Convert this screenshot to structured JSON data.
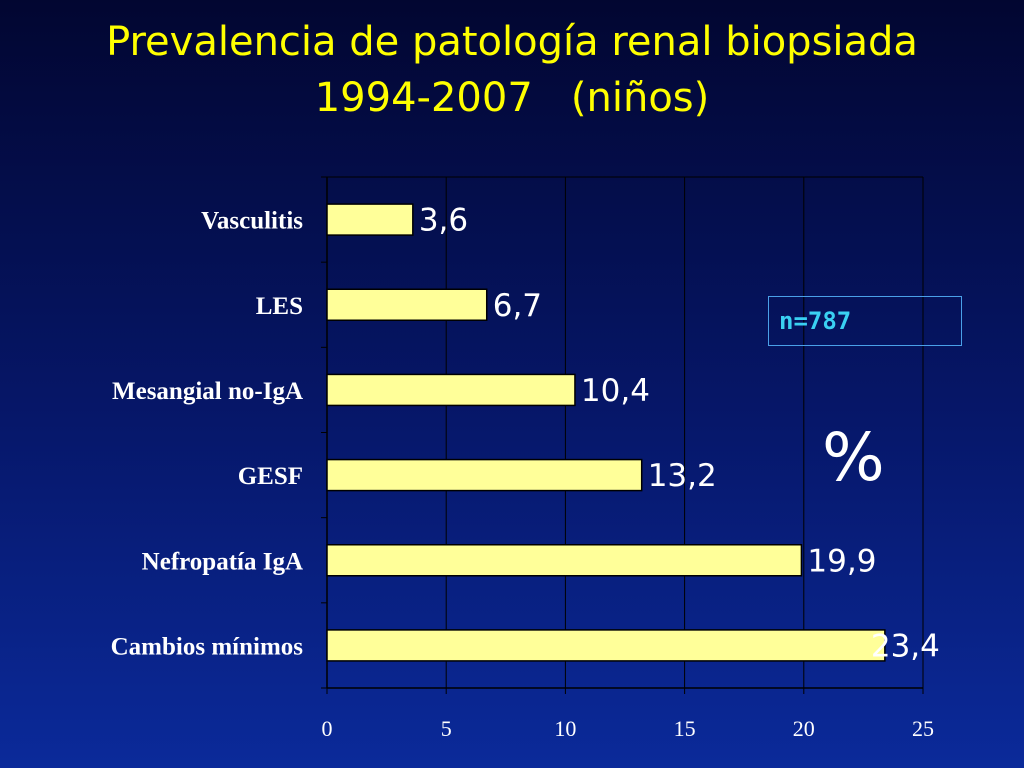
{
  "title": {
    "line1": "Prevalencia de patología renal biopsiada",
    "line2": "1994-2007   (niños)"
  },
  "annotations": {
    "n_label": "n=787",
    "unit_symbol": "%"
  },
  "colors": {
    "bar_fill": "#ffff99",
    "bar_stroke": "#000000",
    "title": "#ffff00",
    "n_label": "#3ad0f2"
  },
  "chart_data": {
    "type": "bar",
    "orientation": "horizontal",
    "categories": [
      "Vasculitis",
      "LES",
      "Mesangial no-IgA",
      "GESF",
      "Nefropatía IgA",
      "Cambios mínimos"
    ],
    "values": [
      3.6,
      6.7,
      10.4,
      13.2,
      19.9,
      23.4
    ],
    "data_labels": [
      "3,6",
      "6,7",
      "10,4",
      "13,2",
      "19,9",
      "23,4"
    ],
    "xlim": [
      0,
      25
    ],
    "xticks": [
      0,
      5,
      10,
      15,
      20,
      25
    ],
    "grid": "vertical",
    "legend": "none"
  }
}
